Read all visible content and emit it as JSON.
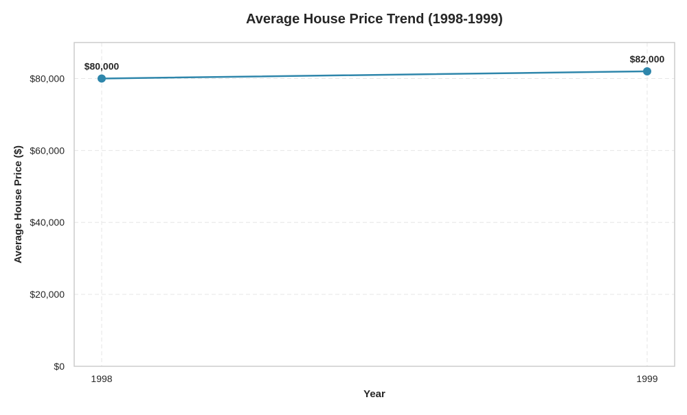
{
  "chart_data": {
    "type": "line",
    "title": "Average House Price Trend (1998-1999)",
    "xlabel": "Year",
    "ylabel": "Average House Price ($)",
    "categories": [
      "1998",
      "1999"
    ],
    "series": [
      {
        "values": [
          80000,
          82000
        ],
        "labels": [
          "$80,000",
          "$82,000"
        ],
        "color": "#2e86ab"
      }
    ],
    "ylim": [
      0,
      90000
    ],
    "yticks": [
      0,
      20000,
      40000,
      60000,
      80000
    ],
    "ytick_labels": [
      "$0",
      "$20,000",
      "$40,000",
      "$60,000",
      "$80,000"
    ],
    "grid": true,
    "legend": "none"
  }
}
